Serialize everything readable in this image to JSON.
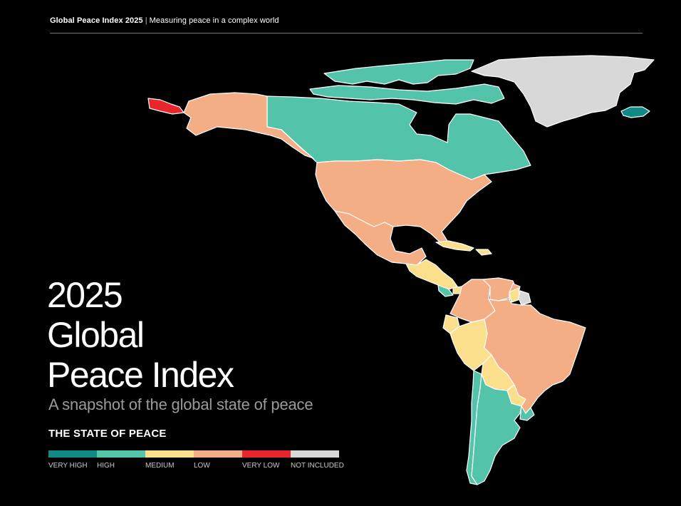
{
  "header": {
    "title": "Global Peace Index 2025",
    "separator": "|",
    "subtitle": "Measuring peace in a complex world"
  },
  "title_lines": [
    "2025",
    "Global",
    "Peace Index"
  ],
  "subtitle": "A snapshot of the global state of peace",
  "legend": {
    "title": "THE STATE OF PEACE",
    "items": [
      {
        "label": "VERY HIGH",
        "color": "#0f8a84"
      },
      {
        "label": "HIGH",
        "color": "#53c3aa"
      },
      {
        "label": "MEDIUM",
        "color": "#fbdf8c"
      },
      {
        "label": "LOW",
        "color": "#f4ae86"
      },
      {
        "label": "VERY LOW",
        "color": "#e8262b"
      },
      {
        "label": "NOT INCLUDED",
        "color": "#d8d8d8"
      }
    ]
  },
  "map_colors": {
    "canada": "#53c3aa",
    "greenland": "#d8d8d8",
    "iceland": "#0f8a84",
    "alaska": "#f4ae86",
    "russia_east": "#e8262b",
    "usa": "#f4ae86",
    "mexico": "#f4ae86",
    "central_america": "#fbdf8c",
    "costa_rica": "#53c3aa",
    "colombia": "#f4ae86",
    "venezuela": "#f4ae86",
    "guyana": "#f4ae86",
    "suriname": "#fbdf8c",
    "french_guiana": "#d8d8d8",
    "ecuador": "#fbdf8c",
    "peru": "#fbdf8c",
    "brazil": "#f4ae86",
    "bolivia": "#fbdf8c",
    "paraguay": "#fbdf8c",
    "chile": "#53c3aa",
    "argentina": "#53c3aa",
    "uruguay": "#53c3aa",
    "caribbean": "#fbdf8c"
  }
}
